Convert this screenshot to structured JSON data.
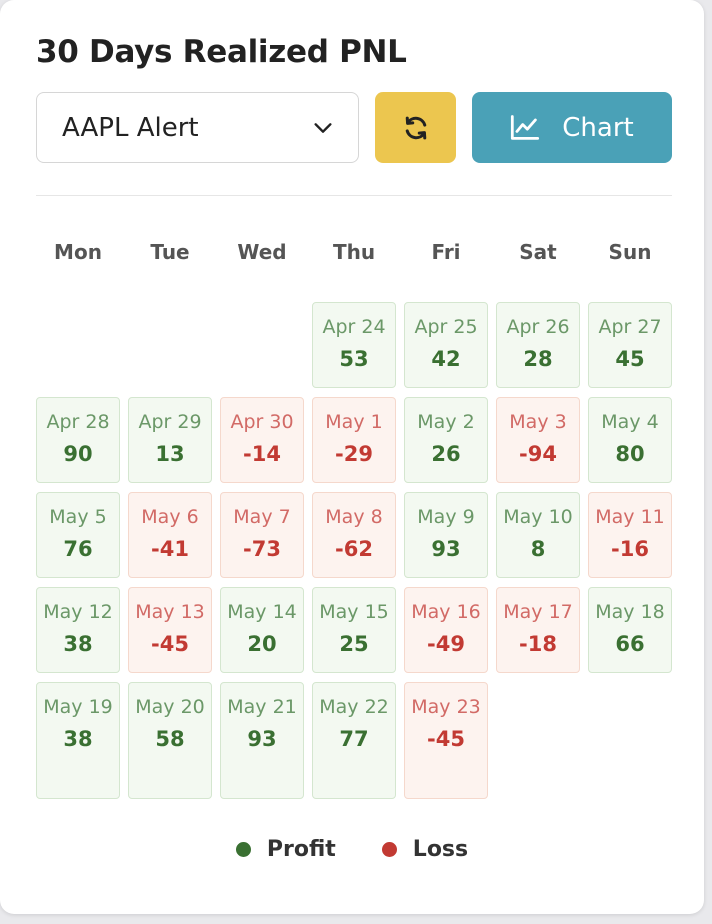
{
  "title": "30 Days Realized PNL",
  "strategy_select": {
    "value": "AAPL Alert",
    "icon": "chevron-down-icon"
  },
  "refresh_button": {
    "icon": "refresh-icon"
  },
  "chart_button": {
    "label": "Chart",
    "icon": "line-chart-icon"
  },
  "weekdays": [
    "Mon",
    "Tue",
    "Wed",
    "Thu",
    "Fri",
    "Sat",
    "Sun"
  ],
  "colors": {
    "profit": "#3a7032",
    "loss": "#c23a33",
    "refresh_bg": "#ecc64f",
    "chart_bg": "#4aa1b7"
  },
  "weeks": [
    [
      null,
      null,
      null,
      {
        "date": "Apr 24",
        "value": "53",
        "type": "profit"
      },
      {
        "date": "Apr 25",
        "value": "42",
        "type": "profit"
      },
      {
        "date": "Apr 26",
        "value": "28",
        "type": "profit"
      },
      {
        "date": "Apr 27",
        "value": "45",
        "type": "profit"
      }
    ],
    [
      {
        "date": "Apr 28",
        "value": "90",
        "type": "profit"
      },
      {
        "date": "Apr 29",
        "value": "13",
        "type": "profit"
      },
      {
        "date": "Apr 30",
        "value": "-14",
        "type": "loss"
      },
      {
        "date": "May 1",
        "value": "-29",
        "type": "loss"
      },
      {
        "date": "May 2",
        "value": "26",
        "type": "profit"
      },
      {
        "date": "May 3",
        "value": "-94",
        "type": "loss"
      },
      {
        "date": "May 4",
        "value": "80",
        "type": "profit"
      }
    ],
    [
      {
        "date": "May 5",
        "value": "76",
        "type": "profit"
      },
      {
        "date": "May 6",
        "value": "-41",
        "type": "loss"
      },
      {
        "date": "May 7",
        "value": "-73",
        "type": "loss"
      },
      {
        "date": "May 8",
        "value": "-62",
        "type": "loss"
      },
      {
        "date": "May 9",
        "value": "93",
        "type": "profit"
      },
      {
        "date": "May 10",
        "value": "8",
        "type": "profit"
      },
      {
        "date": "May 11",
        "value": "-16",
        "type": "loss"
      }
    ],
    [
      {
        "date": "May 12",
        "value": "38",
        "type": "profit"
      },
      {
        "date": "May 13",
        "value": "-45",
        "type": "loss"
      },
      {
        "date": "May 14",
        "value": "20",
        "type": "profit"
      },
      {
        "date": "May 15",
        "value": "25",
        "type": "profit"
      },
      {
        "date": "May 16",
        "value": "-49",
        "type": "loss"
      },
      {
        "date": "May 17",
        "value": "-18",
        "type": "loss"
      },
      {
        "date": "May 18",
        "value": "66",
        "type": "profit"
      }
    ],
    [
      {
        "date": "May 19",
        "value": "38",
        "type": "profit"
      },
      {
        "date": "May 20",
        "value": "58",
        "type": "profit"
      },
      {
        "date": "May 21",
        "value": "93",
        "type": "profit"
      },
      {
        "date": "May 22",
        "value": "77",
        "type": "profit"
      },
      {
        "date": "May 23",
        "value": "-45",
        "type": "loss"
      },
      null,
      null
    ]
  ],
  "legend": [
    {
      "label": "Profit",
      "type": "profit"
    },
    {
      "label": "Loss",
      "type": "loss"
    }
  ]
}
